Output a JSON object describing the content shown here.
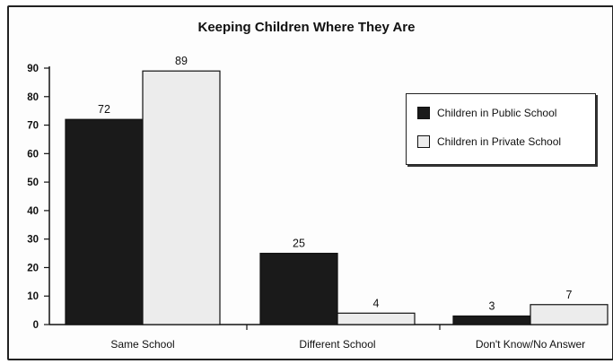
{
  "chart_data": {
    "type": "bar",
    "title": "Keeping Children Where They Are",
    "categories": [
      "Same School",
      "Different School",
      "Don't Know/No Answer"
    ],
    "series": [
      {
        "name": "Children in Public School",
        "values": [
          72,
          25,
          3
        ],
        "color": "#1a1a1a"
      },
      {
        "name": "Children in Private School",
        "values": [
          89,
          4,
          7
        ],
        "color": "#ececec"
      }
    ],
    "data_labels": [
      [
        "72",
        "25",
        "3"
      ],
      [
        "89",
        "4",
        "7"
      ]
    ],
    "yticks": [
      "0",
      "10",
      "20",
      "30",
      "40",
      "50",
      "60",
      "70",
      "80",
      "90"
    ],
    "ylim": [
      0,
      90
    ],
    "xlabel": "",
    "ylabel": "",
    "legend_position": "top-right",
    "grid": false
  }
}
